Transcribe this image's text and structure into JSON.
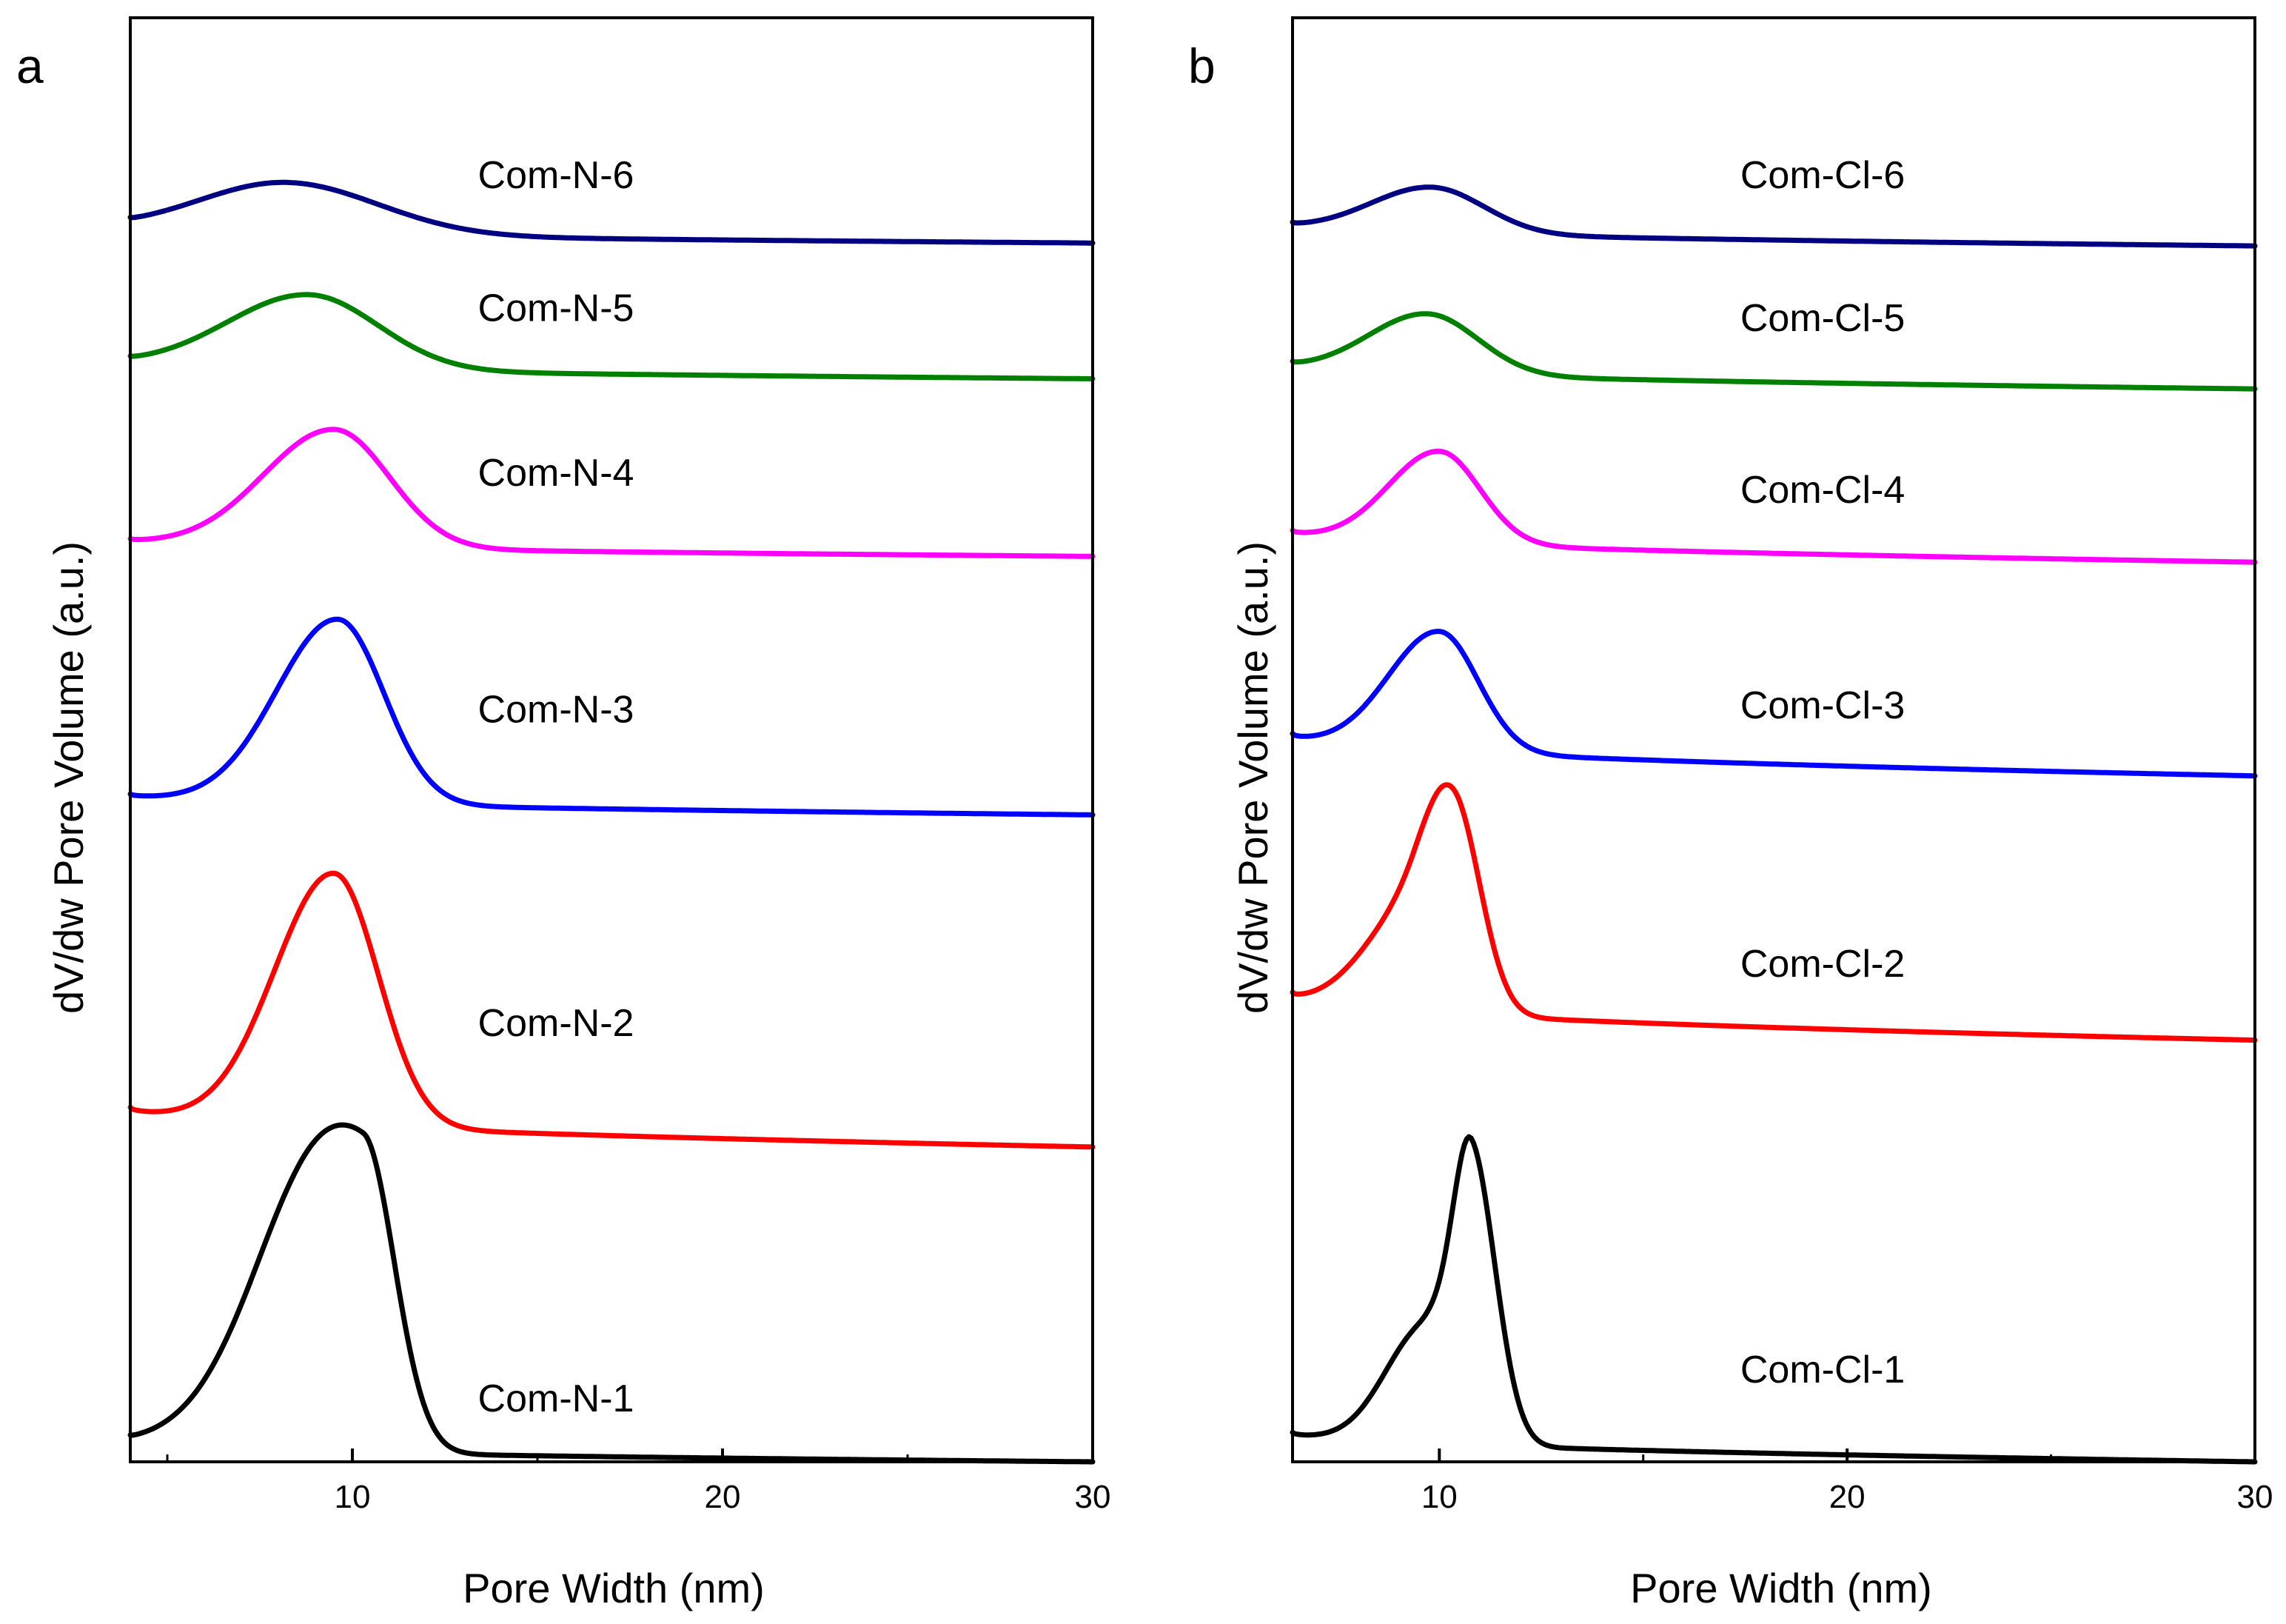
{
  "chart_data": [
    {
      "type": "line",
      "panel_label": "a",
      "xlabel": "Pore Width (nm)",
      "ylabel": "dV/dw Pore Volume (a.u.)",
      "xlim": [
        4,
        30
      ],
      "ylim": [
        0,
        10
      ],
      "xticks": [
        10,
        20,
        30
      ],
      "xtick_labels": [
        "10",
        "20",
        "30"
      ],
      "minor_xticks": [
        5,
        15,
        25
      ],
      "grid": false,
      "series": [
        {
          "name": "Com-N-1",
          "color": "#000000",
          "baseline": 0.12,
          "tail": 0.0,
          "label_pos": [
            15.5,
            0.35
          ],
          "components": [
            {
              "center": 10.3,
              "amp": 2.0,
              "sl": 2.4,
              "sr": 0.85
            },
            {
              "center": 8.6,
              "amp": 0.45,
              "sl": 1.4,
              "sr": 1.4
            }
          ]
        },
        {
          "name": "Com-N-2",
          "color": "#ff0000",
          "baseline": 2.45,
          "tail": 2.18,
          "label_pos": [
            15.5,
            2.95
          ],
          "components": [
            {
              "center": 9.5,
              "amp": 1.75,
              "sl": 1.6,
              "sr": 1.2
            }
          ]
        },
        {
          "name": "Com-N-3",
          "color": "#0000ff",
          "baseline": 4.62,
          "tail": 4.48,
          "label_pos": [
            15.5,
            5.12
          ],
          "components": [
            {
              "center": 9.6,
              "amp": 1.28,
              "sl": 1.65,
              "sr": 1.25
            }
          ]
        },
        {
          "name": "Com-N-4",
          "color": "#ff00ff",
          "baseline": 6.38,
          "tail": 6.27,
          "label_pos": [
            15.5,
            6.76
          ],
          "components": [
            {
              "center": 9.5,
              "amp": 0.82,
              "sl": 1.9,
              "sr": 1.5
            }
          ]
        },
        {
          "name": "Com-N-5",
          "color": "#008000",
          "baseline": 7.61,
          "tail": 7.5,
          "label_pos": [
            15.5,
            7.9
          ],
          "components": [
            {
              "center": 8.8,
              "amp": 0.52,
              "sl": 2.2,
              "sr": 1.9
            }
          ]
        },
        {
          "name": "Com-N-6",
          "color": "#000080",
          "baseline": 8.54,
          "tail": 8.44,
          "label_pos": [
            15.5,
            8.82
          ],
          "components": [
            {
              "center": 8.2,
              "amp": 0.36,
              "sl": 2.4,
              "sr": 2.5
            }
          ]
        }
      ]
    },
    {
      "type": "line",
      "panel_label": "b",
      "xlabel": "Pore Width (nm)",
      "ylabel": "dV/dw Pore Volume (a.u.)",
      "xlim": [
        6.4,
        30
      ],
      "ylim": [
        0,
        10
      ],
      "xticks": [
        10,
        20,
        30
      ],
      "xtick_labels": [
        "10",
        "20",
        "30"
      ],
      "minor_xticks": [
        15,
        25
      ],
      "grid": false,
      "series": [
        {
          "name": "Com-Cl-1",
          "color": "#000000",
          "baseline": 0.2,
          "tail": 0.0,
          "label_pos": [
            19.4,
            0.55
          ],
          "components": [
            {
              "center": 10.8,
              "amp": 1.8,
              "sl": 0.45,
              "sr": 0.6
            },
            {
              "center": 9.7,
              "amp": 0.82,
              "sl": 1.0,
              "sr": 0.8
            }
          ]
        },
        {
          "name": "Com-Cl-2",
          "color": "#ff0000",
          "baseline": 3.22,
          "tail": 2.92,
          "label_pos": [
            19.4,
            3.36
          ],
          "components": [
            {
              "center": 10.4,
              "amp": 1.15,
              "sl": 0.7,
              "sr": 0.65
            },
            {
              "center": 9.4,
              "amp": 0.72,
              "sl": 1.2,
              "sr": 0.9
            }
          ]
        },
        {
          "name": "Com-Cl-3",
          "color": "#0000ff",
          "baseline": 5.03,
          "tail": 4.75,
          "label_pos": [
            19.4,
            5.15
          ],
          "components": [
            {
              "center": 10.0,
              "amp": 0.83,
              "sl": 1.25,
              "sr": 0.95
            }
          ]
        },
        {
          "name": "Com-Cl-4",
          "color": "#ff00ff",
          "baseline": 6.44,
          "tail": 6.23,
          "label_pos": [
            19.4,
            6.64
          ],
          "components": [
            {
              "center": 10.0,
              "amp": 0.64,
              "sl": 1.25,
              "sr": 1.0
            }
          ]
        },
        {
          "name": "Com-Cl-5",
          "color": "#008000",
          "baseline": 7.59,
          "tail": 7.43,
          "label_pos": [
            19.4,
            7.83
          ],
          "components": [
            {
              "center": 9.7,
              "amp": 0.42,
              "sl": 1.45,
              "sr": 1.25
            }
          ]
        },
        {
          "name": "Com-Cl-6",
          "color": "#000080",
          "baseline": 8.56,
          "tail": 8.42,
          "label_pos": [
            19.4,
            8.82
          ],
          "components": [
            {
              "center": 9.8,
              "amp": 0.32,
              "sl": 1.5,
              "sr": 1.3
            }
          ]
        }
      ]
    }
  ]
}
